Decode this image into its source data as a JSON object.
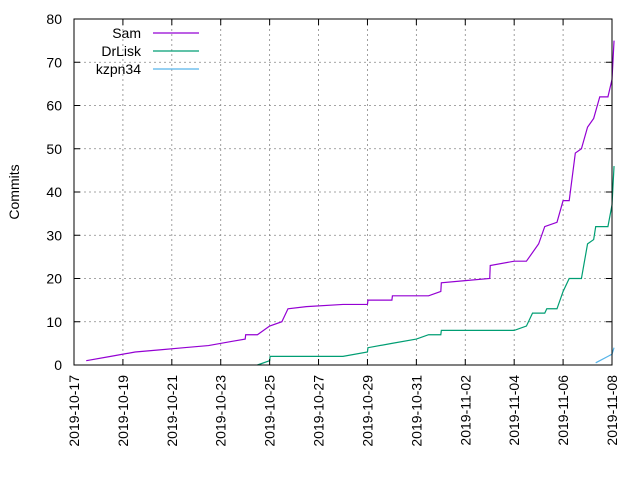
{
  "chart_data": {
    "type": "line",
    "title": "",
    "xlabel": "",
    "ylabel": "Commits",
    "ylim": [
      0,
      80
    ],
    "xlim": [
      "2019-10-17",
      "2019-11-08"
    ],
    "y_ticks": [
      0,
      10,
      20,
      30,
      40,
      50,
      60,
      70,
      80
    ],
    "x_ticks": [
      "2019-10-17",
      "2019-10-19",
      "2019-10-21",
      "2019-10-23",
      "2019-10-25",
      "2019-10-27",
      "2019-10-29",
      "2019-10-31",
      "2019-11-02",
      "2019-11-04",
      "2019-11-06",
      "2019-11-08"
    ],
    "grid": true,
    "legend_position": "top-left",
    "series": [
      {
        "name": "Sam",
        "color": "#9400d3",
        "points": [
          [
            "2019-10-17T12:00",
            1
          ],
          [
            "2019-10-18T12:00",
            2
          ],
          [
            "2019-10-19T12:00",
            3
          ],
          [
            "2019-10-20T12:00",
            3.5
          ],
          [
            "2019-10-21T12:00",
            4
          ],
          [
            "2019-10-22T12:00",
            4.5
          ],
          [
            "2019-10-23T12:00",
            5.5
          ],
          [
            "2019-10-24T00:00",
            6
          ],
          [
            "2019-10-24T00:30",
            7
          ],
          [
            "2019-10-24T12:00",
            7
          ],
          [
            "2019-10-25T00:00",
            9
          ],
          [
            "2019-10-25T12:00",
            10
          ],
          [
            "2019-10-25T18:00",
            13
          ],
          [
            "2019-10-26T12:00",
            13.5
          ],
          [
            "2019-10-28T00:00",
            14
          ],
          [
            "2019-10-29T00:00",
            14
          ],
          [
            "2019-10-29T00:30",
            15
          ],
          [
            "2019-10-30T00:00",
            15
          ],
          [
            "2019-10-30T00:30",
            16
          ],
          [
            "2019-10-31T12:00",
            16
          ],
          [
            "2019-11-01T00:00",
            17
          ],
          [
            "2019-11-01T00:30",
            19
          ],
          [
            "2019-11-02T00:00",
            19.5
          ],
          [
            "2019-11-03T00:00",
            20
          ],
          [
            "2019-11-03T00:30",
            23
          ],
          [
            "2019-11-04T00:00",
            24
          ],
          [
            "2019-11-04T12:00",
            24
          ],
          [
            "2019-11-05T00:00",
            28
          ],
          [
            "2019-11-05T06:00",
            32
          ],
          [
            "2019-11-05T18:00",
            33
          ],
          [
            "2019-11-06T00:00",
            38
          ],
          [
            "2019-11-06T06:00",
            38
          ],
          [
            "2019-11-06T12:00",
            49
          ],
          [
            "2019-11-06T18:00",
            50
          ],
          [
            "2019-11-07T00:00",
            55
          ],
          [
            "2019-11-07T06:00",
            57
          ],
          [
            "2019-11-07T12:00",
            62
          ],
          [
            "2019-11-07T20:00",
            62
          ],
          [
            "2019-11-08T00:00",
            66
          ],
          [
            "2019-11-08T02:00",
            75
          ]
        ]
      },
      {
        "name": "DrLisk",
        "color": "#009e73",
        "points": [
          [
            "2019-10-24T12:00",
            0
          ],
          [
            "2019-10-25T00:00",
            1
          ],
          [
            "2019-10-25T00:30",
            2
          ],
          [
            "2019-10-26T12:00",
            2
          ],
          [
            "2019-10-28T00:00",
            2
          ],
          [
            "2019-10-29T00:00",
            3
          ],
          [
            "2019-10-29T00:30",
            4
          ],
          [
            "2019-10-30T00:00",
            5
          ],
          [
            "2019-10-31T00:00",
            6
          ],
          [
            "2019-10-31T12:00",
            7
          ],
          [
            "2019-11-01T00:00",
            7
          ],
          [
            "2019-11-01T00:30",
            8
          ],
          [
            "2019-11-02T12:00",
            8
          ],
          [
            "2019-11-04T00:00",
            8
          ],
          [
            "2019-11-04T12:00",
            9
          ],
          [
            "2019-11-04T18:00",
            12
          ],
          [
            "2019-11-05T06:00",
            12
          ],
          [
            "2019-11-05T08:00",
            13
          ],
          [
            "2019-11-05T18:00",
            13
          ],
          [
            "2019-11-06T00:00",
            17
          ],
          [
            "2019-11-06T06:00",
            20
          ],
          [
            "2019-11-06T18:00",
            20
          ],
          [
            "2019-11-07T00:00",
            28
          ],
          [
            "2019-11-07T06:00",
            29
          ],
          [
            "2019-11-07T08:00",
            32
          ],
          [
            "2019-11-07T20:00",
            32
          ],
          [
            "2019-11-08T00:00",
            37
          ],
          [
            "2019-11-08T02:00",
            46
          ]
        ]
      },
      {
        "name": "kzpn34",
        "color": "#56b4e9",
        "points": [
          [
            "2019-11-07T08:00",
            0.5
          ],
          [
            "2019-11-07T12:00",
            1
          ],
          [
            "2019-11-07T20:00",
            2
          ],
          [
            "2019-11-08T00:00",
            2.5
          ],
          [
            "2019-11-08T02:00",
            4
          ]
        ]
      }
    ]
  }
}
